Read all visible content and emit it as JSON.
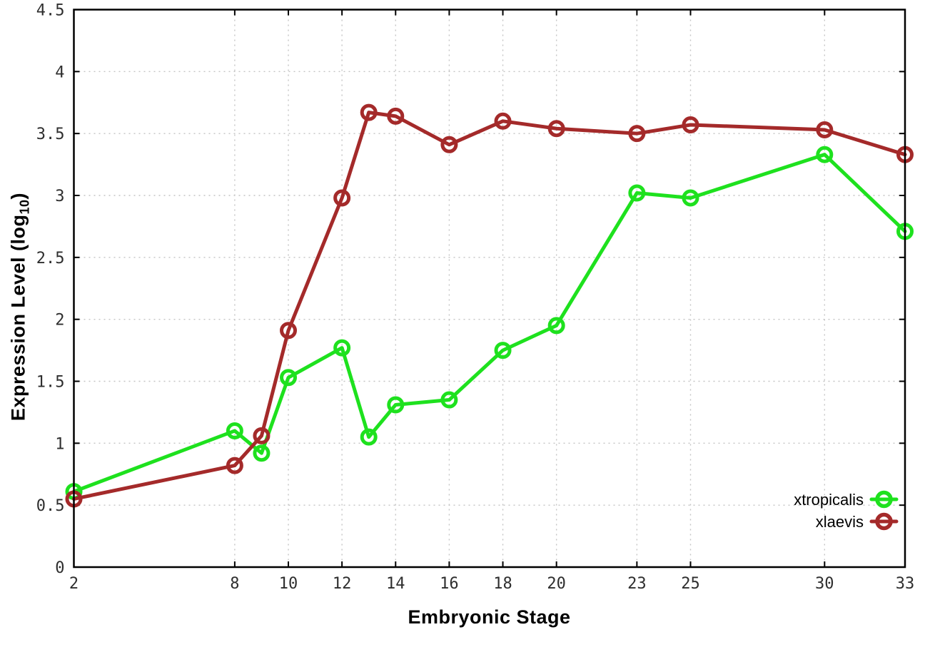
{
  "chart_data": {
    "type": "line",
    "title": "",
    "xlabel": "Embryonic Stage",
    "ylabel": "Expression Level (log10)",
    "ylabel_prefix": "Expression Level (log",
    "ylabel_sub": "10",
    "ylabel_suffix": ")",
    "xlim": [
      2,
      33
    ],
    "ylim": [
      0,
      4.5
    ],
    "x_tick_labels": [
      "2",
      "8",
      "10",
      "12",
      "14",
      "16",
      "18",
      "20",
      "23",
      "25",
      "30",
      "33"
    ],
    "y_tick_labels": [
      "0",
      "0.5",
      "1",
      "1.5",
      "2",
      "2.5",
      "3",
      "3.5",
      "4",
      "4.5"
    ],
    "grid": true,
    "grid_style": "dotted",
    "legend_position": "bottom-right-inside",
    "marker": "open-circle",
    "x": [
      2,
      8,
      9,
      10,
      12,
      13,
      14,
      16,
      18,
      20,
      23,
      25,
      30,
      33
    ],
    "series": [
      {
        "name": "xtropicalis",
        "color": "#1ee11e",
        "values": [
          0.61,
          1.1,
          0.92,
          1.53,
          1.77,
          1.05,
          1.31,
          1.35,
          1.75,
          1.95,
          3.02,
          2.98,
          3.33,
          2.71
        ]
      },
      {
        "name": "xlaevis",
        "color": "#a42a2a",
        "values": [
          0.55,
          0.82,
          1.06,
          1.91,
          2.98,
          3.67,
          3.64,
          3.41,
          3.6,
          3.54,
          3.5,
          3.57,
          3.53,
          3.33
        ]
      }
    ],
    "colors": {
      "background": "#ffffff",
      "axis": "#000000",
      "grid": "#c4c4c4",
      "tick_labels": "#2e2e2e"
    }
  }
}
